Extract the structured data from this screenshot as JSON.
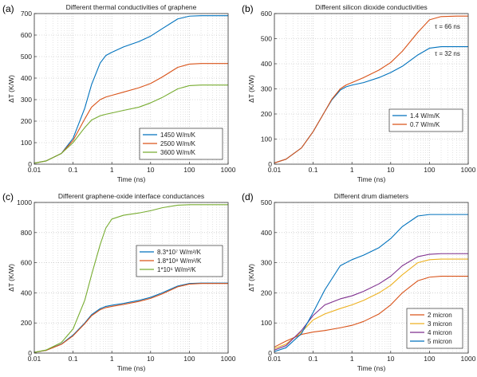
{
  "chart_data": [
    {
      "type": "line",
      "panel_label": "(a)",
      "title": "Different thermal conductivities of graphene",
      "xlabel": "Time (ns)",
      "ylabel": "ΔT (K/W)",
      "xscale": "log",
      "xlim": [
        0.01,
        1000
      ],
      "ylim": [
        0,
        700
      ],
      "xticks": [
        "0.01",
        "0.1",
        "1",
        "10",
        "100",
        "1000"
      ],
      "yticks": [
        "0",
        "100",
        "200",
        "300",
        "400",
        "500",
        "600",
        "700"
      ],
      "grid": "dotted",
      "legend_position": "bottom-right",
      "series": [
        {
          "name": "1450 W/m/K",
          "color": "#0072bd",
          "x": [
            0.01,
            0.02,
            0.05,
            0.1,
            0.2,
            0.3,
            0.5,
            0.7,
            1,
            2,
            5,
            10,
            20,
            50,
            100,
            200,
            500,
            1000
          ],
          "y": [
            5,
            15,
            50,
            120,
            260,
            370,
            470,
            505,
            520,
            545,
            570,
            595,
            630,
            675,
            688,
            690,
            690,
            690
          ]
        },
        {
          "name": "2500 W/m/K",
          "color": "#d95319",
          "x": [
            0.01,
            0.02,
            0.05,
            0.1,
            0.2,
            0.3,
            0.5,
            0.7,
            1,
            2,
            5,
            10,
            20,
            50,
            100,
            200,
            500,
            1000
          ],
          "y": [
            5,
            15,
            50,
            110,
            210,
            265,
            300,
            312,
            320,
            335,
            355,
            375,
            405,
            450,
            465,
            468,
            468,
            468
          ]
        },
        {
          "name": "3600 W/m/K",
          "color": "#77ac30",
          "x": [
            0.01,
            0.02,
            0.05,
            0.1,
            0.2,
            0.3,
            0.5,
            0.7,
            1,
            2,
            5,
            10,
            20,
            50,
            100,
            200,
            500,
            1000
          ],
          "y": [
            5,
            15,
            50,
            100,
            170,
            205,
            225,
            232,
            238,
            250,
            265,
            285,
            310,
            350,
            365,
            368,
            368,
            368
          ]
        }
      ]
    },
    {
      "type": "line",
      "panel_label": "(b)",
      "title": "Different silicon dioxide conductivities",
      "xlabel": "Time (ns)",
      "ylabel": "ΔT (K/W)",
      "xscale": "log",
      "xlim": [
        0.01,
        1000
      ],
      "ylim": [
        0,
        600
      ],
      "xticks": [
        "0.01",
        "0.1",
        "1",
        "10",
        "100",
        "1000"
      ],
      "yticks": [
        "0",
        "100",
        "200",
        "300",
        "400",
        "500",
        "600"
      ],
      "grid": "dotted",
      "legend_position": "bottom-right",
      "annotations": [
        "τ = 66 ns",
        "τ = 32 ns"
      ],
      "series": [
        {
          "name": "1.4 W/m/K",
          "color": "#0072bd",
          "x": [
            0.01,
            0.02,
            0.05,
            0.1,
            0.2,
            0.3,
            0.5,
            0.7,
            1,
            2,
            5,
            10,
            20,
            50,
            100,
            200,
            500,
            1000
          ],
          "y": [
            5,
            20,
            65,
            130,
            210,
            255,
            295,
            308,
            315,
            325,
            345,
            365,
            390,
            435,
            462,
            468,
            468,
            468
          ]
        },
        {
          "name": "0.7 W/m/K",
          "color": "#d95319",
          "x": [
            0.01,
            0.02,
            0.05,
            0.1,
            0.2,
            0.3,
            0.5,
            0.7,
            1,
            2,
            5,
            10,
            20,
            50,
            100,
            200,
            500,
            1000
          ],
          "y": [
            5,
            20,
            65,
            130,
            210,
            258,
            300,
            315,
            325,
            345,
            375,
            405,
            450,
            525,
            575,
            588,
            590,
            590
          ]
        }
      ]
    },
    {
      "type": "line",
      "panel_label": "(c)",
      "title": "Different graphene-oxide interface conductances",
      "xlabel": "Time (ns)",
      "ylabel": "ΔT (K/W)",
      "xscale": "log",
      "xlim": [
        0.01,
        1000
      ],
      "ylim": [
        0,
        1000
      ],
      "xticks": [
        "0.01",
        "0.1",
        "1",
        "10",
        "100",
        "1000"
      ],
      "yticks": [
        "0",
        "200",
        "400",
        "600",
        "800",
        "1000"
      ],
      "grid": "dotted",
      "legend_position": "center-right",
      "series": [
        {
          "name": "8.3*10⁷ W/m²/K",
          "color": "#0072bd",
          "x": [
            0.01,
            0.02,
            0.05,
            0.1,
            0.2,
            0.3,
            0.5,
            0.7,
            1,
            2,
            5,
            10,
            20,
            50,
            100,
            200,
            500,
            1000
          ],
          "y": [
            5,
            18,
            60,
            120,
            200,
            255,
            295,
            310,
            318,
            330,
            350,
            370,
            400,
            445,
            462,
            465,
            465,
            465
          ]
        },
        {
          "name": "1.8*10⁸ W/m²/K",
          "color": "#d95319",
          "x": [
            0.01,
            0.02,
            0.05,
            0.1,
            0.2,
            0.3,
            0.5,
            0.7,
            1,
            2,
            5,
            10,
            20,
            50,
            100,
            200,
            500,
            1000
          ],
          "y": [
            5,
            18,
            58,
            115,
            195,
            248,
            288,
            302,
            310,
            323,
            343,
            363,
            393,
            440,
            458,
            462,
            462,
            462
          ]
        },
        {
          "name": "1*10⁶ W/m²/K",
          "color": "#77ac30",
          "x": [
            0.01,
            0.02,
            0.05,
            0.1,
            0.2,
            0.3,
            0.5,
            0.7,
            1,
            2,
            5,
            10,
            20,
            50,
            100,
            200,
            500,
            1000
          ],
          "y": [
            5,
            20,
            70,
            160,
            350,
            520,
            720,
            830,
            890,
            915,
            930,
            945,
            965,
            982,
            985,
            985,
            985,
            985
          ]
        }
      ]
    },
    {
      "type": "line",
      "panel_label": "(d)",
      "title": "Different drum diameters",
      "xlabel": "Time (ns)",
      "ylabel": "ΔT (K/W)",
      "xscale": "log",
      "xlim": [
        0.01,
        1000
      ],
      "ylim": [
        0,
        500
      ],
      "xticks": [
        "0.01",
        "0.1",
        "1",
        "10",
        "100",
        "1000"
      ],
      "yticks": [
        "0",
        "100",
        "200",
        "300",
        "400",
        "500"
      ],
      "grid": "dotted",
      "legend_position": "bottom-right",
      "series": [
        {
          "name": "2 micron",
          "color": "#d95319",
          "x": [
            0.01,
            0.02,
            0.05,
            0.1,
            0.2,
            0.5,
            1,
            2,
            5,
            10,
            20,
            50,
            100,
            200,
            500,
            1000
          ],
          "y": [
            20,
            40,
            62,
            70,
            75,
            84,
            92,
            105,
            130,
            160,
            200,
            240,
            252,
            255,
            255,
            255
          ]
        },
        {
          "name": "3 micron",
          "color": "#edb120",
          "x": [
            0.01,
            0.02,
            0.05,
            0.1,
            0.2,
            0.5,
            1,
            2,
            5,
            10,
            20,
            50,
            100,
            200,
            500,
            1000
          ],
          "y": [
            15,
            30,
            70,
            110,
            130,
            148,
            160,
            175,
            200,
            225,
            260,
            300,
            310,
            312,
            312,
            312
          ]
        },
        {
          "name": "4 micron",
          "color": "#7e2f8e",
          "x": [
            0.01,
            0.02,
            0.05,
            0.1,
            0.2,
            0.5,
            1,
            2,
            5,
            10,
            20,
            50,
            100,
            200,
            500,
            1000
          ],
          "y": [
            10,
            25,
            75,
            125,
            160,
            180,
            190,
            205,
            230,
            255,
            290,
            320,
            328,
            330,
            330,
            330
          ]
        },
        {
          "name": "5 micron",
          "color": "#0072bd",
          "x": [
            0.01,
            0.02,
            0.05,
            0.1,
            0.2,
            0.5,
            1,
            2,
            5,
            10,
            20,
            50,
            100,
            200,
            500,
            1000
          ],
          "y": [
            5,
            18,
            65,
            135,
            210,
            290,
            310,
            325,
            350,
            380,
            420,
            455,
            460,
            460,
            460,
            460
          ]
        }
      ]
    }
  ]
}
